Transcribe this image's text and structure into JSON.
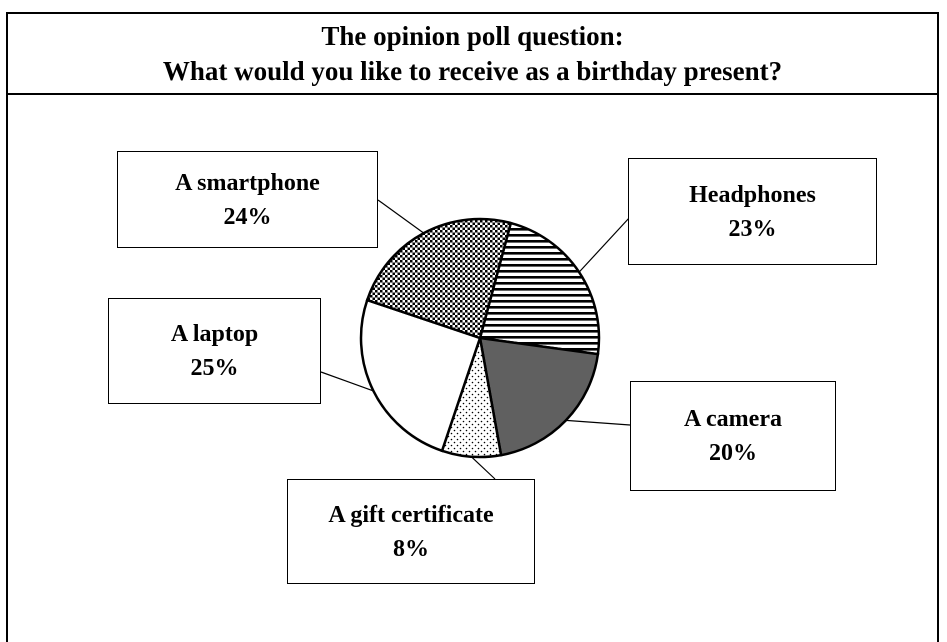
{
  "title": {
    "line1": "The opinion poll question:",
    "line2": "What would you like to receive as a birthday present?"
  },
  "chart_data": {
    "type": "pie",
    "title": "The opinion poll question: What would you like to receive as a birthday present?",
    "slices": [
      {
        "label": "Headphones",
        "value": 23,
        "value_label": "23%",
        "pattern": "horizontal-stripes"
      },
      {
        "label": "A camera",
        "value": 20,
        "value_label": "20%",
        "pattern": "solid-dark-gray",
        "color": "#606060"
      },
      {
        "label": "A gift certificate",
        "value": 8,
        "value_label": "8%",
        "pattern": "dots"
      },
      {
        "label": "A laptop",
        "value": 25,
        "value_label": "25%",
        "pattern": "none",
        "color": "#ffffff"
      },
      {
        "label": "A smartphone",
        "value": 24,
        "value_label": "24%",
        "pattern": "checkered"
      }
    ],
    "legend": "callout-boxes"
  }
}
